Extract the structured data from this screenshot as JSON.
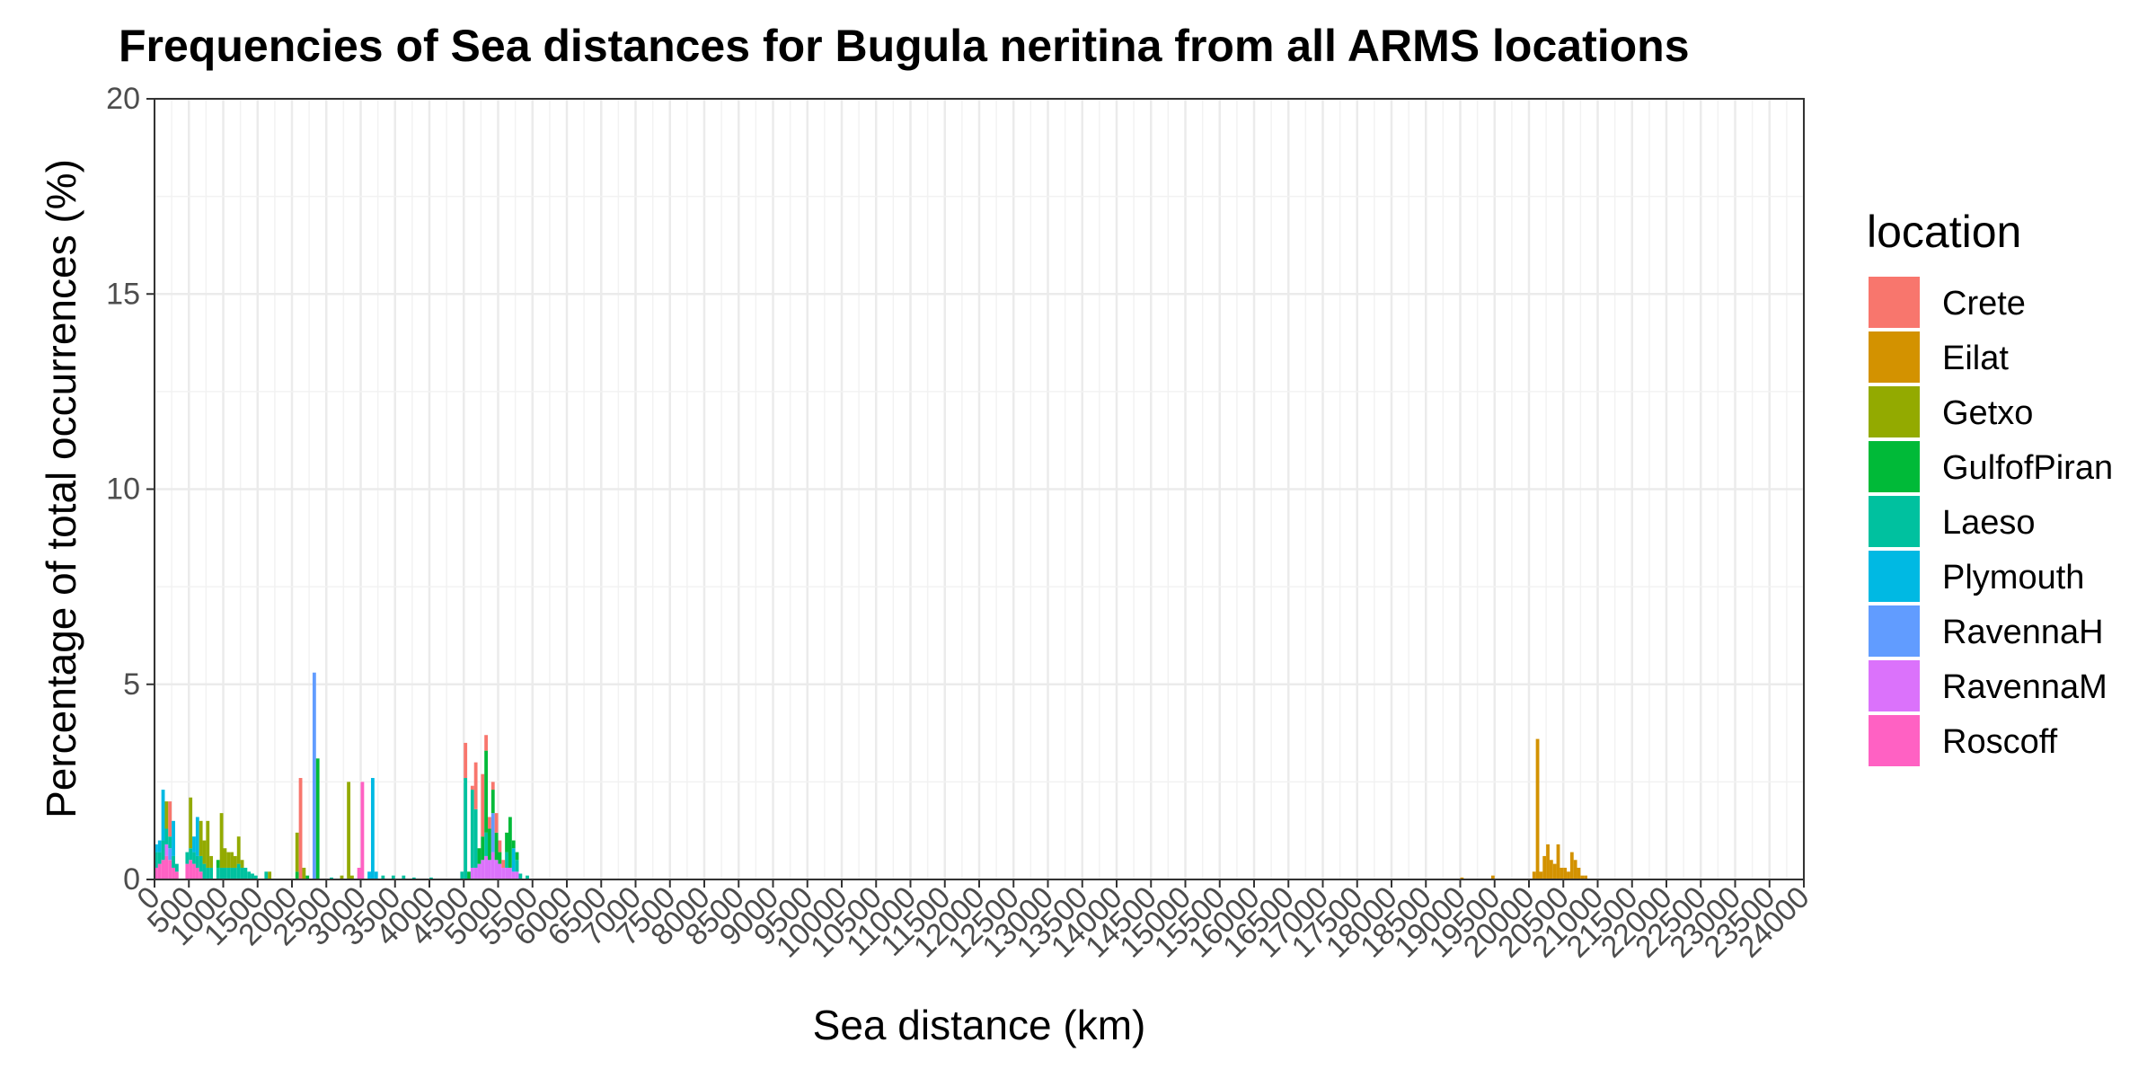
{
  "chart_data": {
    "type": "bar",
    "stacked": true,
    "title": "Frequencies of Sea distances for Bugula neritina from all ARMS locations",
    "xlabel": "Sea distance (km)",
    "ylabel": "Percentage of total occurrences (%)",
    "xlim": [
      0,
      24000
    ],
    "ylim": [
      0,
      20
    ],
    "bin_width": 50,
    "yticks": [
      "0",
      "5",
      "10",
      "15",
      "20"
    ],
    "xticks": [
      "0",
      "500",
      "1000",
      "1500",
      "2000",
      "2500",
      "3000",
      "3500",
      "4000",
      "4500",
      "5000",
      "5500",
      "6000",
      "6500",
      "7000",
      "7500",
      "8000",
      "8500",
      "9000",
      "9500",
      "10000",
      "10500",
      "11000",
      "11500",
      "12000",
      "12500",
      "13000",
      "13500",
      "14000",
      "14500",
      "15000",
      "15500",
      "16000",
      "16500",
      "17000",
      "17500",
      "18000",
      "18500",
      "19000",
      "19500",
      "20000",
      "20500",
      "21000",
      "21500",
      "22000",
      "22500",
      "23000",
      "23500",
      "24000"
    ],
    "grid": true,
    "legend": {
      "title": "location",
      "position": "right",
      "entries": [
        {
          "name": "Crete",
          "color": "#F8766D"
        },
        {
          "name": "Eilat",
          "color": "#D39200"
        },
        {
          "name": "Getxo",
          "color": "#93AA00"
        },
        {
          "name": "GulfofPiran",
          "color": "#00BA38"
        },
        {
          "name": "Laeso",
          "color": "#00C19F"
        },
        {
          "name": "Plymouth",
          "color": "#00B9E3"
        },
        {
          "name": "RavennaH",
          "color": "#619CFF"
        },
        {
          "name": "RavennaM",
          "color": "#DB72FB"
        },
        {
          "name": "Roscoff",
          "color": "#FF61C3"
        }
      ]
    },
    "bars": [
      {
        "x": 0,
        "segments": [
          {
            "s": "Roscoff",
            "v": 0.3
          },
          {
            "s": "Laeso",
            "v": 0.4
          },
          {
            "s": "Plymouth",
            "v": 0.2
          }
        ]
      },
      {
        "x": 50,
        "segments": [
          {
            "s": "Roscoff",
            "v": 0.4
          },
          {
            "s": "Laeso",
            "v": 0.3
          },
          {
            "s": "Plymouth",
            "v": 0.3
          }
        ]
      },
      {
        "x": 100,
        "segments": [
          {
            "s": "Roscoff",
            "v": 0.5
          },
          {
            "s": "Laeso",
            "v": 0.5
          },
          {
            "s": "Plymouth",
            "v": 1.3
          }
        ]
      },
      {
        "x": 150,
        "segments": [
          {
            "s": "Roscoff",
            "v": 0.6
          },
          {
            "s": "RavennaM",
            "v": 0.3
          },
          {
            "s": "Laeso",
            "v": 0.4
          },
          {
            "s": "Getxo",
            "v": 0.7
          }
        ]
      },
      {
        "x": 200,
        "segments": [
          {
            "s": "Roscoff",
            "v": 0.5
          },
          {
            "s": "RavennaH",
            "v": 0.3
          },
          {
            "s": "Laeso",
            "v": 0.3
          },
          {
            "s": "Crete",
            "v": 0.9
          }
        ]
      },
      {
        "x": 250,
        "segments": [
          {
            "s": "Roscoff",
            "v": 0.3
          },
          {
            "s": "Laeso",
            "v": 0.3
          },
          {
            "s": "Plymouth",
            "v": 0.9
          }
        ]
      },
      {
        "x": 300,
        "segments": [
          {
            "s": "Roscoff",
            "v": 0.2
          },
          {
            "s": "Laeso",
            "v": 0.2
          }
        ]
      },
      {
        "x": 450,
        "segments": [
          {
            "s": "Roscoff",
            "v": 0.4
          },
          {
            "s": "Laeso",
            "v": 0.3
          }
        ]
      },
      {
        "x": 500,
        "segments": [
          {
            "s": "Roscoff",
            "v": 0.5
          },
          {
            "s": "Laeso",
            "v": 0.3
          },
          {
            "s": "Getxo",
            "v": 1.3
          }
        ]
      },
      {
        "x": 550,
        "segments": [
          {
            "s": "Roscoff",
            "v": 0.4
          },
          {
            "s": "Laeso",
            "v": 0.3
          },
          {
            "s": "Plymouth",
            "v": 0.4
          }
        ]
      },
      {
        "x": 600,
        "segments": [
          {
            "s": "Roscoff",
            "v": 0.3
          },
          {
            "s": "Laeso",
            "v": 0.3
          },
          {
            "s": "Plymouth",
            "v": 1.0
          }
        ]
      },
      {
        "x": 650,
        "segments": [
          {
            "s": "Roscoff",
            "v": 0.2
          },
          {
            "s": "Laeso",
            "v": 0.4
          },
          {
            "s": "Getxo",
            "v": 0.9
          }
        ]
      },
      {
        "x": 700,
        "segments": [
          {
            "s": "Laeso",
            "v": 0.4
          },
          {
            "s": "Getxo",
            "v": 0.6
          }
        ]
      },
      {
        "x": 750,
        "segments": [
          {
            "s": "Laeso",
            "v": 0.3
          },
          {
            "s": "Getxo",
            "v": 1.2
          }
        ]
      },
      {
        "x": 800,
        "segments": [
          {
            "s": "Laeso",
            "v": 0.3
          },
          {
            "s": "Getxo",
            "v": 0.3
          }
        ]
      },
      {
        "x": 900,
        "segments": [
          {
            "s": "Laeso",
            "v": 0.3
          },
          {
            "s": "GulfofPiran",
            "v": 0.2
          }
        ]
      },
      {
        "x": 950,
        "segments": [
          {
            "s": "Laeso",
            "v": 0.3
          },
          {
            "s": "Getxo",
            "v": 1.4
          }
        ]
      },
      {
        "x": 1000,
        "segments": [
          {
            "s": "Laeso",
            "v": 0.3
          },
          {
            "s": "Getxo",
            "v": 0.5
          }
        ]
      },
      {
        "x": 1050,
        "segments": [
          {
            "s": "Laeso",
            "v": 0.3
          },
          {
            "s": "Getxo",
            "v": 0.4
          }
        ]
      },
      {
        "x": 1100,
        "segments": [
          {
            "s": "Laeso",
            "v": 0.3
          },
          {
            "s": "Getxo",
            "v": 0.4
          }
        ]
      },
      {
        "x": 1150,
        "segments": [
          {
            "s": "Laeso",
            "v": 0.3
          },
          {
            "s": "Getxo",
            "v": 0.3
          }
        ]
      },
      {
        "x": 1200,
        "segments": [
          {
            "s": "Laeso",
            "v": 0.4
          },
          {
            "s": "Getxo",
            "v": 0.7
          }
        ]
      },
      {
        "x": 1250,
        "segments": [
          {
            "s": "Laeso",
            "v": 0.3
          },
          {
            "s": "Getxo",
            "v": 0.2
          }
        ]
      },
      {
        "x": 1300,
        "segments": [
          {
            "s": "Laeso",
            "v": 0.3
          }
        ]
      },
      {
        "x": 1350,
        "segments": [
          {
            "s": "Laeso",
            "v": 0.2
          }
        ]
      },
      {
        "x": 1400,
        "segments": [
          {
            "s": "Laeso",
            "v": 0.15
          }
        ]
      },
      {
        "x": 1450,
        "segments": [
          {
            "s": "Laeso",
            "v": 0.1
          }
        ]
      },
      {
        "x": 1600,
        "segments": [
          {
            "s": "Laeso",
            "v": 0.2
          }
        ]
      },
      {
        "x": 1650,
        "segments": [
          {
            "s": "Getxo",
            "v": 0.2
          }
        ]
      },
      {
        "x": 2050,
        "segments": [
          {
            "s": "GulfofPiran",
            "v": 0.2
          },
          {
            "s": "Getxo",
            "v": 1.0
          }
        ]
      },
      {
        "x": 2100,
        "segments": [
          {
            "s": "Crete",
            "v": 2.6
          }
        ]
      },
      {
        "x": 2150,
        "segments": [
          {
            "s": "Getxo",
            "v": 0.3
          }
        ]
      },
      {
        "x": 2200,
        "segments": [
          {
            "s": "GulfofPiran",
            "v": 0.1
          }
        ]
      },
      {
        "x": 2300,
        "segments": [
          {
            "s": "RavennaH",
            "v": 5.3
          }
        ]
      },
      {
        "x": 2350,
        "segments": [
          {
            "s": "GulfofPiran",
            "v": 3.1
          }
        ]
      },
      {
        "x": 2550,
        "segments": [
          {
            "s": "Laeso",
            "v": 0.05
          }
        ]
      },
      {
        "x": 2700,
        "segments": [
          {
            "s": "Getxo",
            "v": 0.1
          }
        ]
      },
      {
        "x": 2800,
        "segments": [
          {
            "s": "Getxo",
            "v": 2.5
          }
        ]
      },
      {
        "x": 2850,
        "segments": [
          {
            "s": "Getxo",
            "v": 0.1
          }
        ]
      },
      {
        "x": 2950,
        "segments": [
          {
            "s": "Roscoff",
            "v": 0.3
          }
        ]
      },
      {
        "x": 3000,
        "segments": [
          {
            "s": "Roscoff",
            "v": 2.5
          }
        ]
      },
      {
        "x": 3100,
        "segments": [
          {
            "s": "Plymouth",
            "v": 0.2
          }
        ]
      },
      {
        "x": 3150,
        "segments": [
          {
            "s": "Plymouth",
            "v": 2.6
          }
        ]
      },
      {
        "x": 3200,
        "segments": [
          {
            "s": "Plymouth",
            "v": 0.2
          }
        ]
      },
      {
        "x": 3300,
        "segments": [
          {
            "s": "Laeso",
            "v": 0.1
          }
        ]
      },
      {
        "x": 3450,
        "segments": [
          {
            "s": "Laeso",
            "v": 0.1
          }
        ]
      },
      {
        "x": 3600,
        "segments": [
          {
            "s": "Laeso",
            "v": 0.1
          }
        ]
      },
      {
        "x": 3750,
        "segments": [
          {
            "s": "Laeso",
            "v": 0.05
          }
        ]
      },
      {
        "x": 4000,
        "segments": [
          {
            "s": "Laeso",
            "v": 0.05
          }
        ]
      },
      {
        "x": 4450,
        "segments": [
          {
            "s": "Laeso",
            "v": 0.2
          }
        ]
      },
      {
        "x": 4500,
        "segments": [
          {
            "s": "Laeso",
            "v": 2.6
          },
          {
            "s": "Crete",
            "v": 0.9
          }
        ]
      },
      {
        "x": 4550,
        "segments": [
          {
            "s": "GulfofPiran",
            "v": 0.2
          }
        ]
      },
      {
        "x": 4600,
        "segments": [
          {
            "s": "RavennaM",
            "v": 0.3
          },
          {
            "s": "Laeso",
            "v": 2.0
          },
          {
            "s": "Crete",
            "v": 0.1
          }
        ]
      },
      {
        "x": 4650,
        "segments": [
          {
            "s": "RavennaM",
            "v": 0.3
          },
          {
            "s": "Laeso",
            "v": 1.5
          },
          {
            "s": "Crete",
            "v": 1.2
          }
        ]
      },
      {
        "x": 4700,
        "segments": [
          {
            "s": "RavennaM",
            "v": 0.4
          },
          {
            "s": "GulfofPiran",
            "v": 0.4
          }
        ]
      },
      {
        "x": 4750,
        "segments": [
          {
            "s": "RavennaM",
            "v": 0.5
          },
          {
            "s": "GulfofPiran",
            "v": 0.6
          },
          {
            "s": "Crete",
            "v": 1.6
          }
        ]
      },
      {
        "x": 4800,
        "segments": [
          {
            "s": "RavennaM",
            "v": 0.6
          },
          {
            "s": "Laeso",
            "v": 0.6
          },
          {
            "s": "GulfofPiran",
            "v": 2.1
          },
          {
            "s": "Crete",
            "v": 0.4
          }
        ]
      },
      {
        "x": 4850,
        "segments": [
          {
            "s": "RavennaM",
            "v": 0.5
          },
          {
            "s": "GulfofPiran",
            "v": 0.8
          },
          {
            "s": "Crete",
            "v": 0.3
          }
        ]
      },
      {
        "x": 4900,
        "segments": [
          {
            "s": "RavennaM",
            "v": 0.7
          },
          {
            "s": "RavennaH",
            "v": 1.0
          },
          {
            "s": "GulfofPiran",
            "v": 0.6
          },
          {
            "s": "Crete",
            "v": 0.2
          }
        ]
      },
      {
        "x": 4950,
        "segments": [
          {
            "s": "RavennaM",
            "v": 0.5
          },
          {
            "s": "GulfofPiran",
            "v": 0.7
          },
          {
            "s": "Crete",
            "v": 0.5
          }
        ]
      },
      {
        "x": 5000,
        "segments": [
          {
            "s": "RavennaM",
            "v": 0.4
          },
          {
            "s": "GulfofPiran",
            "v": 0.3
          },
          {
            "s": "Crete",
            "v": 0.3
          }
        ]
      },
      {
        "x": 5050,
        "segments": [
          {
            "s": "RavennaM",
            "v": 0.3
          },
          {
            "s": "Crete",
            "v": 0.2
          }
        ]
      },
      {
        "x": 5100,
        "segments": [
          {
            "s": "RavennaM",
            "v": 0.3
          },
          {
            "s": "Laeso",
            "v": 0.4
          },
          {
            "s": "GulfofPiran",
            "v": 0.5
          }
        ]
      },
      {
        "x": 5150,
        "segments": [
          {
            "s": "RavennaM",
            "v": 0.3
          },
          {
            "s": "GulfofPiran",
            "v": 1.3
          }
        ]
      },
      {
        "x": 5200,
        "segments": [
          {
            "s": "RavennaM",
            "v": 0.2
          },
          {
            "s": "Plymouth",
            "v": 0.6
          },
          {
            "s": "GulfofPiran",
            "v": 0.2
          }
        ]
      },
      {
        "x": 5250,
        "segments": [
          {
            "s": "RavennaM",
            "v": 0.2
          },
          {
            "s": "Laeso",
            "v": 0.3
          },
          {
            "s": "GulfofPiran",
            "v": 0.2
          }
        ]
      },
      {
        "x": 5300,
        "segments": [
          {
            "s": "Laeso",
            "v": 0.15
          }
        ]
      },
      {
        "x": 5400,
        "segments": [
          {
            "s": "Laeso",
            "v": 0.1
          }
        ]
      },
      {
        "x": 19000,
        "segments": [
          {
            "s": "Eilat",
            "v": 0.05
          }
        ]
      },
      {
        "x": 19450,
        "segments": [
          {
            "s": "Eilat",
            "v": 0.1
          }
        ]
      },
      {
        "x": 20050,
        "segments": [
          {
            "s": "Eilat",
            "v": 0.2
          }
        ]
      },
      {
        "x": 20100,
        "segments": [
          {
            "s": "Eilat",
            "v": 3.6
          }
        ]
      },
      {
        "x": 20150,
        "segments": [
          {
            "s": "Eilat",
            "v": 0.2
          }
        ]
      },
      {
        "x": 20200,
        "segments": [
          {
            "s": "Eilat",
            "v": 0.6
          }
        ]
      },
      {
        "x": 20250,
        "segments": [
          {
            "s": "Eilat",
            "v": 0.9
          }
        ]
      },
      {
        "x": 20300,
        "segments": [
          {
            "s": "Eilat",
            "v": 0.5
          }
        ]
      },
      {
        "x": 20350,
        "segments": [
          {
            "s": "Eilat",
            "v": 0.4
          }
        ]
      },
      {
        "x": 20400,
        "segments": [
          {
            "s": "Eilat",
            "v": 0.9
          }
        ]
      },
      {
        "x": 20450,
        "segments": [
          {
            "s": "Eilat",
            "v": 0.3
          }
        ]
      },
      {
        "x": 20500,
        "segments": [
          {
            "s": "Eilat",
            "v": 0.3
          }
        ]
      },
      {
        "x": 20550,
        "segments": [
          {
            "s": "Eilat",
            "v": 0.2
          }
        ]
      },
      {
        "x": 20600,
        "segments": [
          {
            "s": "Eilat",
            "v": 0.7
          }
        ]
      },
      {
        "x": 20650,
        "segments": [
          {
            "s": "Eilat",
            "v": 0.5
          }
        ]
      },
      {
        "x": 20700,
        "segments": [
          {
            "s": "Eilat",
            "v": 0.3
          }
        ]
      },
      {
        "x": 20750,
        "segments": [
          {
            "s": "Eilat",
            "v": 0.1
          }
        ]
      },
      {
        "x": 20800,
        "segments": [
          {
            "s": "Eilat",
            "v": 0.1
          }
        ]
      }
    ]
  }
}
